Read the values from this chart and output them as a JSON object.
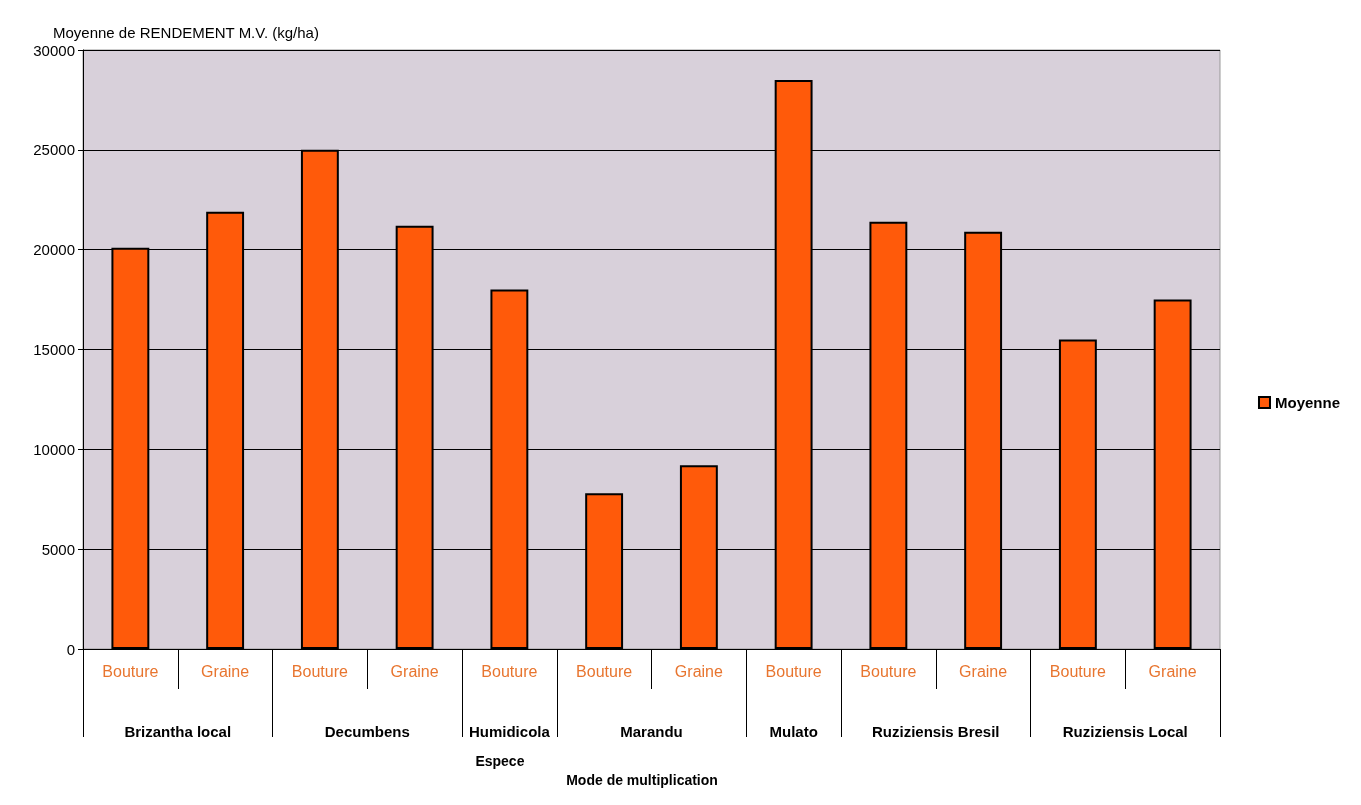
{
  "chart_data": {
    "type": "bar",
    "ylabel": "Moyenne de RENDEMENT M.V. (kg/ha)",
    "categories": [
      "Bouture",
      "Graine",
      "Bouture",
      "Graine",
      "Bouture",
      "Bouture",
      "Graine",
      "Bouture",
      "Bouture",
      "Graine",
      "Bouture",
      "Graine"
    ],
    "series": [
      {
        "name": "Moyenne",
        "color": "#ff5a0a",
        "values": [
          20100,
          21900,
          25000,
          21200,
          18000,
          7800,
          9200,
          28500,
          21400,
          20900,
          15500,
          17500
        ]
      }
    ],
    "annotations": [
      "Brizantha local",
      "Decumbens",
      "Humidicola",
      "Marandu",
      "Mulato",
      "Ruziziensis Bresil",
      "Ruziziensis Local",
      "Espece",
      "Mode de multiplication"
    ],
    "ylim": [
      0,
      30000
    ],
    "yticks": [
      0,
      5000,
      10000,
      15000,
      20000,
      25000,
      30000
    ],
    "grid": "y",
    "legend": "right"
  }
}
